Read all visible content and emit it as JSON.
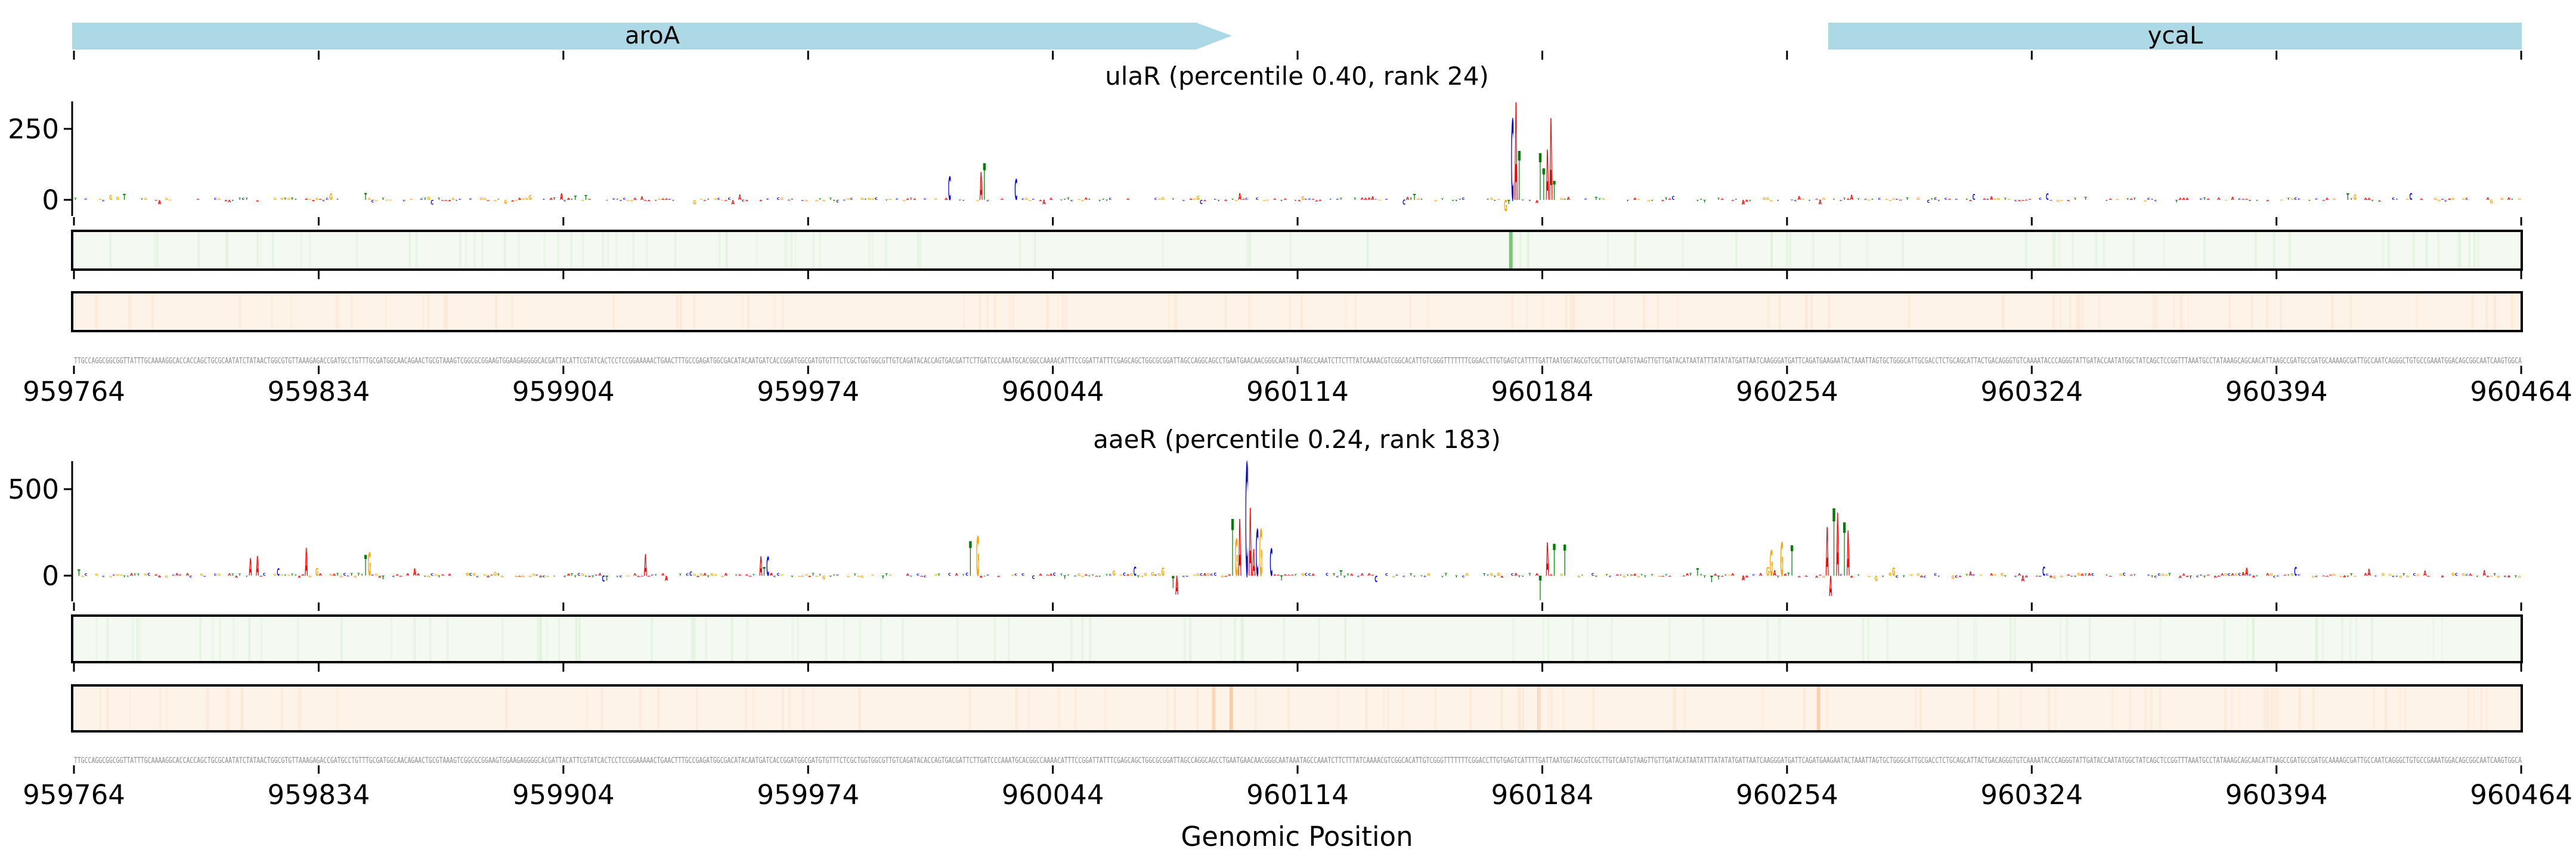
{
  "chart_data": {
    "type": "sequence-logo-tracks",
    "xlabel": "Genomic Position",
    "xlim": [
      959764,
      960464
    ],
    "xticks": [
      "959764",
      "959834",
      "959904",
      "959974",
      "960044",
      "960114",
      "960184",
      "960254",
      "960324",
      "960394",
      "960464"
    ],
    "genes": [
      {
        "name": "aroA",
        "start": 959764,
        "end": 960116,
        "strand": "+"
      },
      {
        "name": "ycaL",
        "start": 960283,
        "end": 960464,
        "strand": "+"
      }
    ],
    "sequence": "TTGCCAGGCGGCGGTTATTTGCAAAAGGCACCACCAGCTGCGCAATATCTATAACTGGCGTGTTAAAGAGACCGATGCCTGTTTGCGATGGCAACAGAACTGCGTAAAGTCGGCGCGGAAGTGGAAGAGGGGCACGATTACATTCGTATCACTCCTCCGGAAAAACTGAACTTTGCCGAGATGGCGACATACAATGATCACCGGATGGCGATGTGTTTCTCGCTGGTGGCGTTGTCAGATACACCAGTGACGATTCTTGATCCCAAATGCACGGCCAAAACATTTCCGGATTATTTCGAGCAGCTGGCGCGGATTAGCCAGGCAGCCTGAATGAACAACGGGCAATAAATAGCCAAATCTTCTTTATCAAAACGTCGGCACATTGTCGGGTTTTTTTCGGACCTTGTGAGTCATTTTGATTAATGGTAGCGTCGCTTGTCAATGTAAGTTGTTGATACATAATATTTATATATGATTAATCAAGGGATGATTCAGATGAAGAATACTAAATTAGTGCTGGGCATTGCGACCTCTGCAGCATTACTGACAGGGTGTCAAAATACCCAGGGTATTGATACCAATATGGCTATCAGCTCCGGTTTAAATGCCTATAAAGCAGCAACATTAAGCCGATGCCGATGCAAAAGCGATTGCCAATCAGGGCTGTGCCGAAATGGACAGCGGCAATCAAGTGGCA",
    "base_colors": {
      "A": "#ff0000",
      "C": "#0000ff",
      "G": "#ffa500",
      "T": "#008000"
    },
    "panels": [
      {
        "title": "ulaR (percentile 0.40, rank 24)",
        "ylim": [
          -60,
          350
        ],
        "yticks": [
          "0",
          "250"
        ],
        "ytick_values": [
          0,
          250
        ],
        "peaks": [
          {
            "pos": 960014,
            "value": 83
          },
          {
            "pos": 960023,
            "value": 98
          },
          {
            "pos": 960024,
            "value": 128
          },
          {
            "pos": 960033,
            "value": 72
          },
          {
            "pos": 960173,
            "value": -40
          },
          {
            "pos": 960175,
            "value": 285
          },
          {
            "pos": 960176,
            "value": 344
          },
          {
            "pos": 960177,
            "value": 172
          },
          {
            "pos": 960183,
            "value": 164
          },
          {
            "pos": 960184,
            "value": 111
          },
          {
            "pos": 960185,
            "value": 176
          },
          {
            "pos": 960186,
            "value": 288
          },
          {
            "pos": 960187,
            "value": 67
          }
        ],
        "green_track_color": "#f4faf2",
        "green_highlights": [
          {
            "pos": 960175,
            "intensity": 0.8
          }
        ],
        "orange_track_color": "#fef3e9",
        "orange_highlights": []
      },
      {
        "title": "aaeR (percentile 0.24, rank 183)",
        "ylim": [
          -150,
          660
        ],
        "yticks": [
          "0",
          "500"
        ],
        "ytick_values": [
          0,
          500
        ],
        "peaks": [
          {
            "pos": 959814,
            "value": 101
          },
          {
            "pos": 959816,
            "value": 114
          },
          {
            "pos": 959830,
            "value": 162
          },
          {
            "pos": 959847,
            "value": 120
          },
          {
            "pos": 959848,
            "value": 133
          },
          {
            "pos": 959927,
            "value": 125
          },
          {
            "pos": 959960,
            "value": 113
          },
          {
            "pos": 959962,
            "value": 110
          },
          {
            "pos": 960020,
            "value": 200
          },
          {
            "pos": 960022,
            "value": 230
          },
          {
            "pos": 960078,
            "value": -70
          },
          {
            "pos": 960079,
            "value": -110
          },
          {
            "pos": 960095,
            "value": 328
          },
          {
            "pos": 960096,
            "value": 214
          },
          {
            "pos": 960097,
            "value": 328
          },
          {
            "pos": 960099,
            "value": 655
          },
          {
            "pos": 960100,
            "value": 393
          },
          {
            "pos": 960101,
            "value": 155
          },
          {
            "pos": 960102,
            "value": 269
          },
          {
            "pos": 960103,
            "value": 269
          },
          {
            "pos": 960106,
            "value": 156
          },
          {
            "pos": 960183,
            "value": -141
          },
          {
            "pos": 960185,
            "value": 193
          },
          {
            "pos": 960187,
            "value": 183
          },
          {
            "pos": 960190,
            "value": 180
          },
          {
            "pos": 960249,
            "value": 148
          },
          {
            "pos": 960252,
            "value": 194
          },
          {
            "pos": 960255,
            "value": 175
          },
          {
            "pos": 960265,
            "value": 281
          },
          {
            "pos": 960266,
            "value": -117
          },
          {
            "pos": 960267,
            "value": 390
          },
          {
            "pos": 960268,
            "value": 365
          },
          {
            "pos": 960270,
            "value": 307
          },
          {
            "pos": 960271,
            "value": 260
          }
        ],
        "green_track_color": "#f4faf2",
        "green_highlights": [],
        "orange_track_color": "#fef3e9",
        "orange_highlights": [
          {
            "pos": 960090,
            "intensity": 0.35
          },
          {
            "pos": 960095,
            "intensity": 0.5
          },
          {
            "pos": 960183,
            "intensity": 0.3
          },
          {
            "pos": 960263,
            "intensity": 0.45
          }
        ]
      }
    ]
  }
}
